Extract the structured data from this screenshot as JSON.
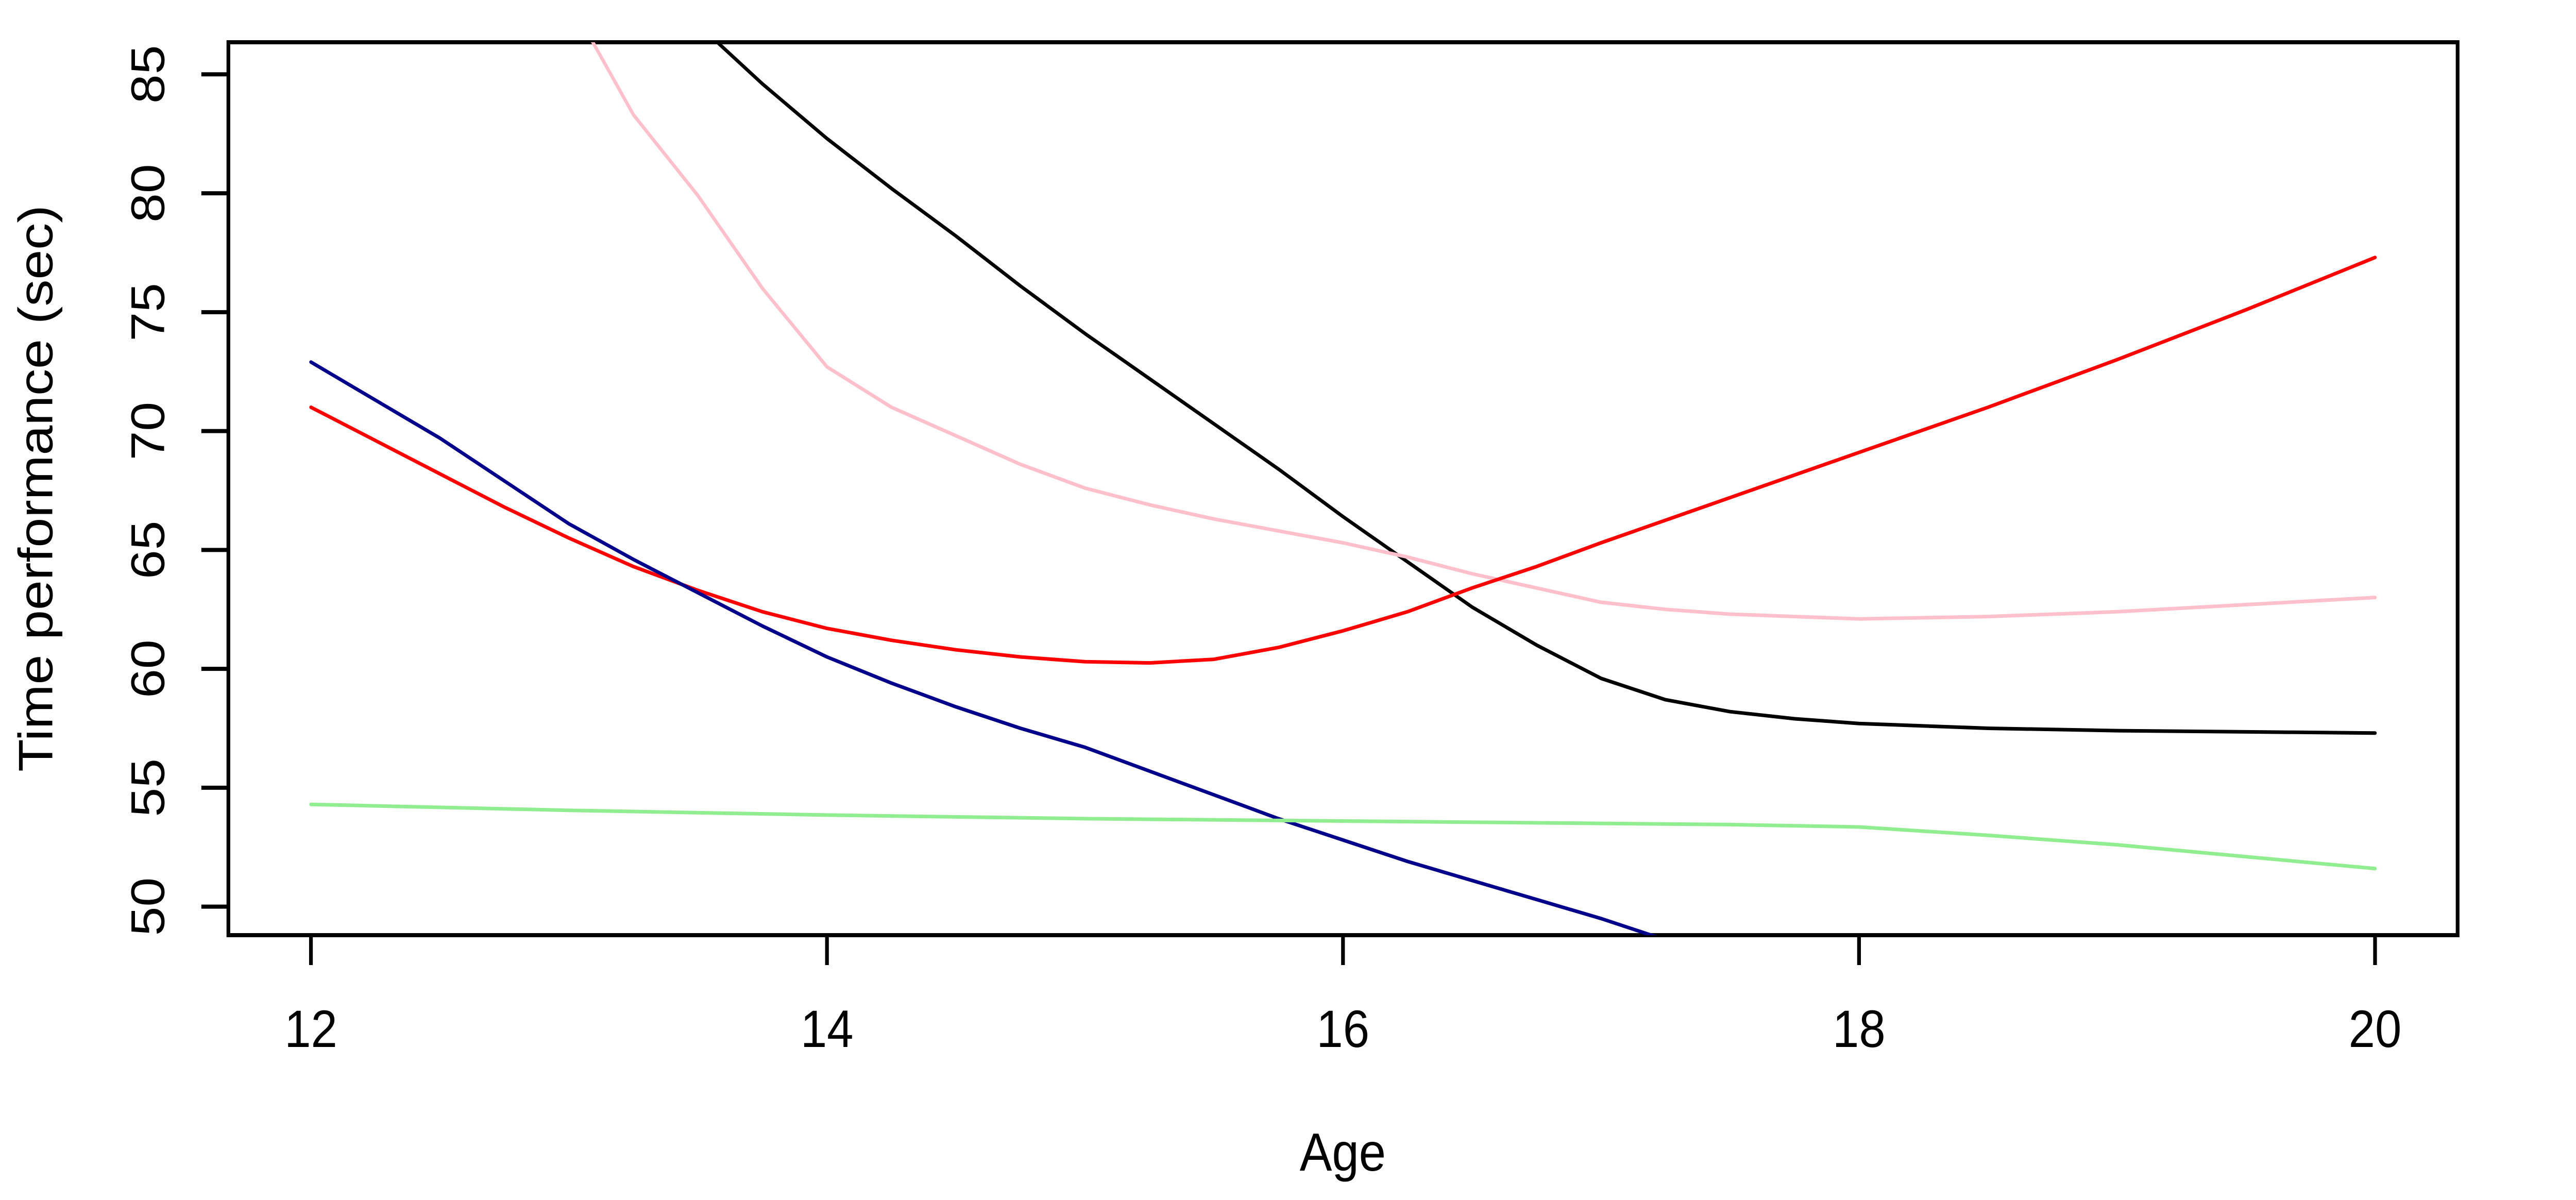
{
  "chart_data": {
    "type": "line",
    "title": "",
    "xlabel": "Age",
    "ylabel": "Time performance (sec)",
    "x_ticks": [
      12,
      14,
      16,
      18,
      20
    ],
    "y_ticks": [
      50,
      55,
      60,
      65,
      70,
      75,
      80,
      85
    ],
    "xlim": [
      11.68,
      20.32
    ],
    "ylim": [
      48.8,
      86.35
    ],
    "grid": false,
    "legend": "none",
    "background_color": "#ffffff",
    "axis_color": "#000000",
    "series": [
      {
        "name": "black",
        "color": "#000000",
        "points": [
          [
            13.45,
            87.6
          ],
          [
            13.57,
            86.4
          ],
          [
            13.75,
            84.6
          ],
          [
            14,
            82.3
          ],
          [
            14.25,
            80.2
          ],
          [
            14.5,
            78.2
          ],
          [
            14.75,
            76.1
          ],
          [
            15,
            74.1
          ],
          [
            15.25,
            72.2
          ],
          [
            15.5,
            70.3
          ],
          [
            15.75,
            68.4
          ],
          [
            16,
            66.4
          ],
          [
            16.25,
            64.5
          ],
          [
            16.5,
            62.6
          ],
          [
            16.75,
            61.0
          ],
          [
            17,
            59.6
          ],
          [
            17.25,
            58.7
          ],
          [
            17.5,
            58.2
          ],
          [
            17.75,
            57.9
          ],
          [
            18,
            57.7
          ],
          [
            18.5,
            57.5
          ],
          [
            19,
            57.4
          ],
          [
            19.5,
            57.35
          ],
          [
            20,
            57.3
          ]
        ]
      },
      {
        "name": "pink",
        "color": "#FFC0CB",
        "points": [
          [
            12.98,
            88.5
          ],
          [
            13.09,
            86.4
          ],
          [
            13.25,
            83.3
          ],
          [
            13.5,
            79.9
          ],
          [
            13.75,
            76.0
          ],
          [
            14,
            72.7
          ],
          [
            14.25,
            71.0
          ],
          [
            14.5,
            69.8
          ],
          [
            14.75,
            68.6
          ],
          [
            15,
            67.6
          ],
          [
            15.25,
            66.9
          ],
          [
            15.5,
            66.3
          ],
          [
            15.75,
            65.8
          ],
          [
            16,
            65.3
          ],
          [
            16.25,
            64.7
          ],
          [
            16.5,
            64.0
          ],
          [
            16.75,
            63.4
          ],
          [
            17,
            62.8
          ],
          [
            17.25,
            62.5
          ],
          [
            17.5,
            62.3
          ],
          [
            17.75,
            62.2
          ],
          [
            18,
            62.1
          ],
          [
            18.5,
            62.2
          ],
          [
            19,
            62.4
          ],
          [
            19.5,
            62.7
          ],
          [
            20,
            63.0
          ]
        ]
      },
      {
        "name": "red",
        "color": "#FF0000",
        "points": [
          [
            12,
            71.0
          ],
          [
            12.25,
            69.6
          ],
          [
            12.5,
            68.2
          ],
          [
            12.75,
            66.8
          ],
          [
            13,
            65.5
          ],
          [
            13.25,
            64.3
          ],
          [
            13.5,
            63.3
          ],
          [
            13.75,
            62.4
          ],
          [
            14,
            61.7
          ],
          [
            14.25,
            61.2
          ],
          [
            14.5,
            60.8
          ],
          [
            14.75,
            60.5
          ],
          [
            15,
            60.3
          ],
          [
            15.25,
            60.25
          ],
          [
            15.5,
            60.4
          ],
          [
            15.75,
            60.9
          ],
          [
            16,
            61.6
          ],
          [
            16.25,
            62.4
          ],
          [
            16.5,
            63.4
          ],
          [
            16.75,
            64.3
          ],
          [
            17,
            65.3
          ],
          [
            17.5,
            67.2
          ],
          [
            18,
            69.1
          ],
          [
            18.5,
            71.0
          ],
          [
            19,
            73.0
          ],
          [
            19.5,
            75.1
          ],
          [
            20,
            77.3
          ]
        ]
      },
      {
        "name": "darkblue",
        "color": "#00008B",
        "points": [
          [
            12,
            72.9
          ],
          [
            12.25,
            71.3
          ],
          [
            12.5,
            69.7
          ],
          [
            12.75,
            67.9
          ],
          [
            13,
            66.1
          ],
          [
            13.25,
            64.6
          ],
          [
            13.5,
            63.2
          ],
          [
            13.75,
            61.8
          ],
          [
            14,
            60.5
          ],
          [
            14.25,
            59.4
          ],
          [
            14.5,
            58.4
          ],
          [
            14.75,
            57.5
          ],
          [
            15,
            56.7
          ],
          [
            15.25,
            55.7
          ],
          [
            15.5,
            54.7
          ],
          [
            15.75,
            53.7
          ],
          [
            16,
            52.8
          ],
          [
            16.25,
            51.9
          ],
          [
            16.5,
            51.1
          ],
          [
            16.75,
            50.3
          ],
          [
            17,
            49.5
          ],
          [
            17.25,
            48.6
          ],
          [
            17.35,
            48.2
          ]
        ]
      },
      {
        "name": "green",
        "color": "#90EE90",
        "points": [
          [
            12,
            54.3
          ],
          [
            13,
            54.05
          ],
          [
            14,
            53.85
          ],
          [
            15,
            53.7
          ],
          [
            16,
            53.6
          ],
          [
            17,
            53.5
          ],
          [
            17.5,
            53.45
          ],
          [
            18,
            53.35
          ],
          [
            18.5,
            53.0
          ],
          [
            19,
            52.6
          ],
          [
            19.5,
            52.1
          ],
          [
            20,
            51.6
          ]
        ]
      }
    ]
  }
}
